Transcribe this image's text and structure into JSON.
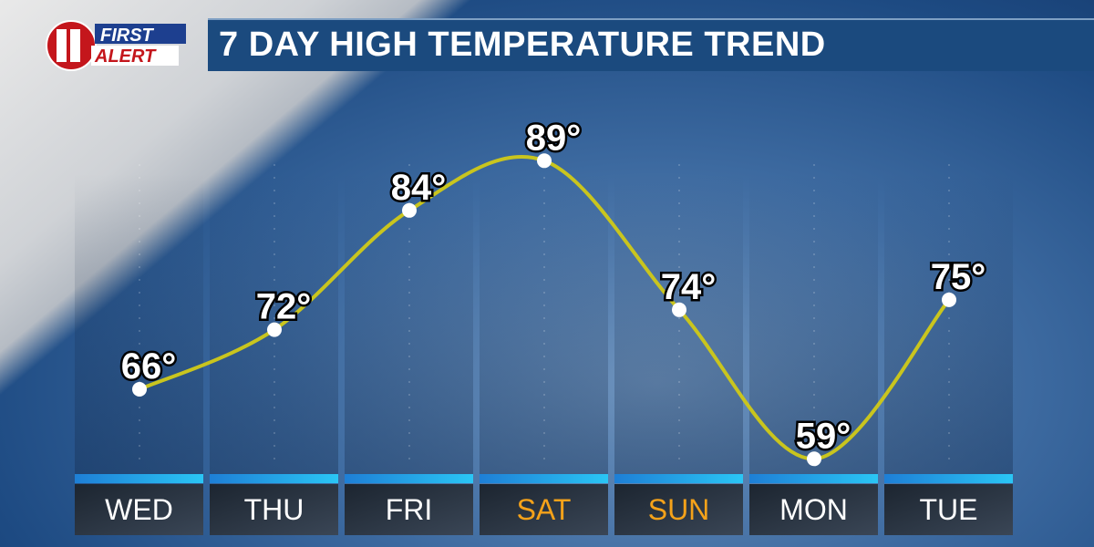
{
  "header": {
    "logo_text": "FIRST ALERT",
    "logo_number": "11",
    "title": "7 DAY HIGH TEMPERATURE TREND"
  },
  "colors": {
    "line": "#c9c51e",
    "weekday_label": "#ffffff",
    "weekend_label": "#f5a21a",
    "title_bar": "#1b4a7e"
  },
  "chart_data": {
    "type": "line",
    "title": "7 DAY HIGH TEMPERATURE TREND",
    "categories": [
      "WED",
      "THU",
      "FRI",
      "SAT",
      "SUN",
      "MON",
      "TUE"
    ],
    "values": [
      66,
      72,
      84,
      89,
      74,
      59,
      75
    ],
    "value_labels": [
      "66°",
      "72°",
      "84°",
      "89°",
      "74°",
      "59°",
      "75°"
    ],
    "weekend": [
      false,
      false,
      false,
      true,
      true,
      false,
      false
    ],
    "unit": "°F"
  }
}
